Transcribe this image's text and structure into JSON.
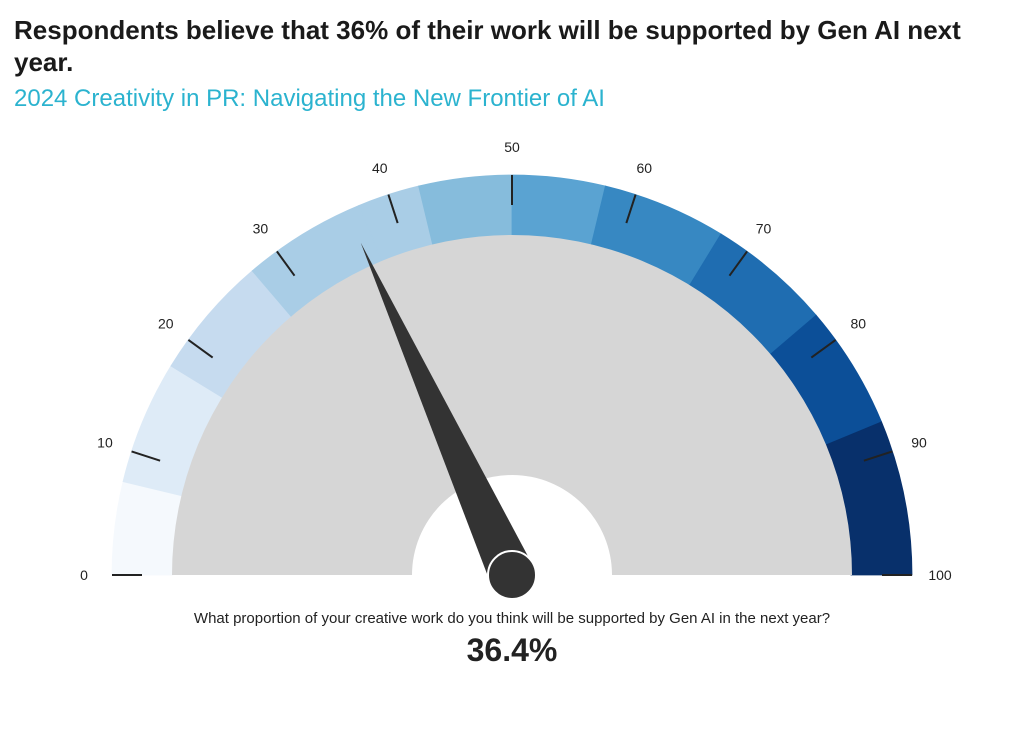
{
  "header": {
    "title": "Respondents believe that 36% of their work will be supported by Gen AI next year.",
    "subtitle": "2024 Creativity in PR: Navigating the New Frontier of AI"
  },
  "chart_data": {
    "type": "gauge",
    "title": "Respondents believe that 36% of their work will be supported by Gen AI next year.",
    "subtitle": "2024 Creativity in PR: Navigating the New Frontier of AI",
    "question": "What proportion of your creative work do you think will be supported by Gen AI in the next year?",
    "value": 36.4,
    "value_label": "36.4%",
    "range": [
      0,
      100
    ],
    "tick_values": [
      0,
      10,
      20,
      30,
      40,
      50,
      60,
      70,
      80,
      90,
      100
    ],
    "tick_labels": [
      "0",
      "10",
      "20",
      "30",
      "40",
      "50",
      "60",
      "70",
      "80",
      "90",
      "100"
    ],
    "bands": [
      {
        "from": 0,
        "to": 7.5,
        "color": "#f5f9fd"
      },
      {
        "from": 7.5,
        "to": 17.5,
        "color": "#deebf7"
      },
      {
        "from": 17.5,
        "to": 27.5,
        "color": "#c6dbef"
      },
      {
        "from": 27.5,
        "to": 37.5,
        "color": "#a9cde6"
      },
      {
        "from": 37.5,
        "to": 42.5,
        "color": "#a9cde6"
      },
      {
        "from": 42.5,
        "to": 50,
        "color": "#86bcdc"
      },
      {
        "from": 50,
        "to": 57.5,
        "color": "#5aa3d2"
      },
      {
        "from": 57.5,
        "to": 67.5,
        "color": "#3788c2"
      },
      {
        "from": 67.5,
        "to": 77.5,
        "color": "#1f6db1"
      },
      {
        "from": 77.5,
        "to": 87.5,
        "color": "#0c4f98"
      },
      {
        "from": 87.5,
        "to": 100,
        "color": "#08306b"
      }
    ],
    "inner_fill": "#d6d6d6",
    "needle_color": "#333333"
  }
}
